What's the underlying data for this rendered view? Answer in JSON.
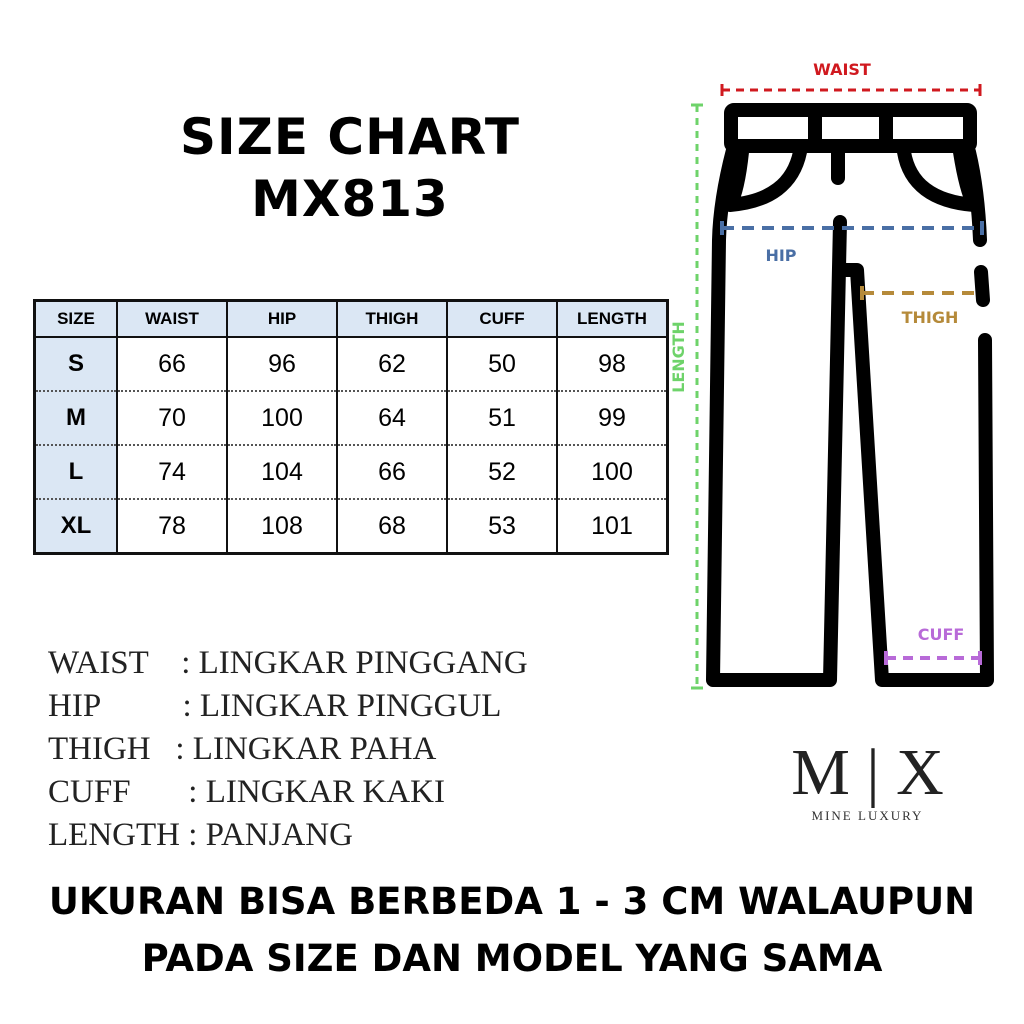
{
  "title": {
    "line1": "SIZE CHART",
    "line2": "MX813"
  },
  "table": {
    "headers": [
      "SIZE",
      "WAIST",
      "HIP",
      "THIGH",
      "CUFF",
      "LENGTH"
    ],
    "rows": [
      [
        "S",
        "66",
        "96",
        "62",
        "50",
        "98"
      ],
      [
        "M",
        "70",
        "100",
        "64",
        "51",
        "99"
      ],
      [
        "L",
        "74",
        "104",
        "66",
        "52",
        "100"
      ],
      [
        "XL",
        "78",
        "108",
        "68",
        "53",
        "101"
      ]
    ],
    "header_bg": "#dbe7f4"
  },
  "legend": [
    "WAIST    : LINGKAR PINGGANG",
    "HIP          : LINGKAR PINGGUL",
    "THIGH   : LINGKAR PAHA",
    "CUFF       : LINGKAR KAKI",
    "LENGTH : PANJANG"
  ],
  "diagram": {
    "waist": {
      "label": "WAIST",
      "color": "#d0191f"
    },
    "hip": {
      "label": "HIP",
      "color": "#4a6fa5"
    },
    "thigh": {
      "label": "THIGH",
      "color": "#b58a3a"
    },
    "cuff": {
      "label": "CUFF",
      "color": "#b86ad8"
    },
    "length": {
      "label": "LENGTH",
      "color": "#6ed36a"
    }
  },
  "logo": {
    "mark": "M | X",
    "name": "MINE LUXURY"
  },
  "note": {
    "line1": "UKURAN BISA BERBEDA 1 - 3 CM WALAUPUN",
    "line2": "PADA SIZE DAN MODEL YANG SAMA"
  }
}
